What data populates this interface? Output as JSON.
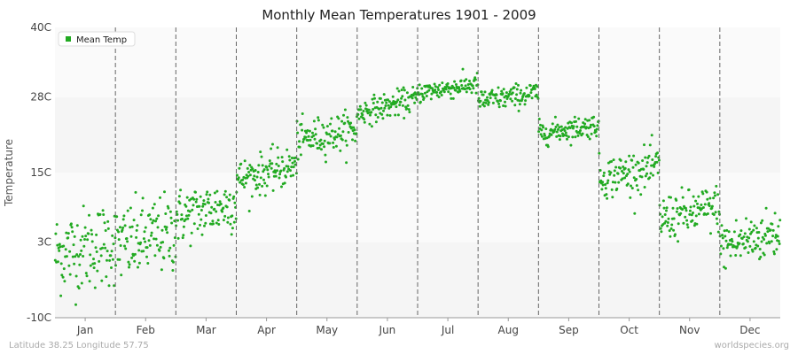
{
  "chart_data": {
    "type": "scatter",
    "title": "Monthly Mean Temperatures 1901 - 2009",
    "ylabel": "Temperature",
    "xlabel": "",
    "ylim": [
      -10,
      40
    ],
    "yticks": [
      {
        "value": -10,
        "label": "-10C"
      },
      {
        "value": 3,
        "label": "3C"
      },
      {
        "value": 15,
        "label": "15C"
      },
      {
        "value": 28,
        "label": "28C"
      },
      {
        "value": 40,
        "label": "40C"
      }
    ],
    "categories": [
      "Jan",
      "Feb",
      "Mar",
      "Apr",
      "May",
      "Jun",
      "Jul",
      "Aug",
      "Sep",
      "Oct",
      "Nov",
      "Dec"
    ],
    "years": [
      1901,
      2009
    ],
    "series": [
      {
        "name": "Mean Temp",
        "color": "#22aa22",
        "monthly_mean": [
          2.0,
          3.5,
          8.5,
          15.0,
          21.5,
          26.5,
          29.5,
          28.0,
          22.5,
          15.0,
          8.0,
          3.5
        ],
        "monthly_spread": [
          3.6,
          3.4,
          2.4,
          1.7,
          1.6,
          1.1,
          0.9,
          1.0,
          1.0,
          1.8,
          2.0,
          2.2
        ],
        "monthly_trend": [
          2.0,
          2.5,
          2.5,
          2.5,
          2.0,
          2.5,
          1.5,
          1.5,
          1.5,
          2.0,
          2.0,
          2.5
        ]
      }
    ],
    "legend": {
      "position": "top-left"
    },
    "grid": true
  },
  "footer": {
    "location": "Latitude 38.25 Longitude 57.75",
    "source": "worldspecies.org"
  }
}
